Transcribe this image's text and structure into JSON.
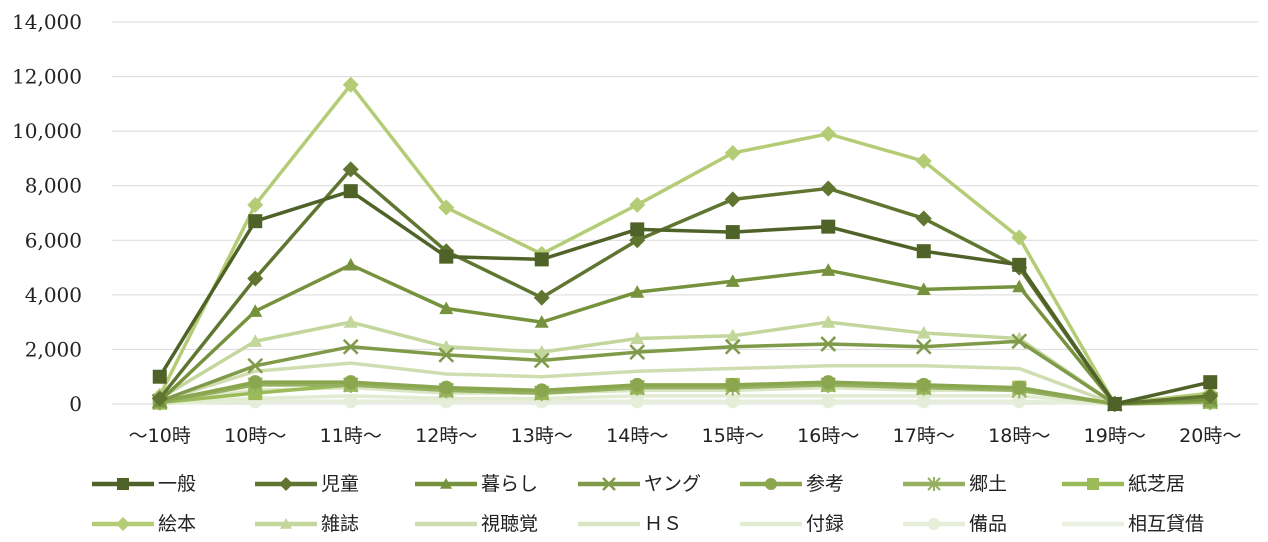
{
  "chart_data": {
    "type": "line",
    "categories": [
      "～10時",
      "10時～",
      "11時～",
      "12時～",
      "13時～",
      "14時～",
      "15時～",
      "16時～",
      "17時～",
      "18時～",
      "19時～",
      "20時～"
    ],
    "y_ticks": [
      "0",
      "2,000",
      "4,000",
      "6,000",
      "8,000",
      "10,000",
      "12,000",
      "14,000"
    ],
    "ylim": [
      0,
      14000
    ],
    "grid": true,
    "legend_position": "bottom",
    "series": [
      {
        "name": "一般",
        "color": "#4f6228",
        "marker": "square",
        "values": [
          1000,
          6700,
          7800,
          5400,
          5300,
          6400,
          6300,
          6500,
          5600,
          5100,
          0,
          800
        ]
      },
      {
        "name": "児童",
        "color": "#5f7530",
        "marker": "diamond",
        "values": [
          200,
          4600,
          8600,
          5600,
          3900,
          6000,
          7500,
          7900,
          6800,
          5000,
          0,
          300
        ]
      },
      {
        "name": "暮らし",
        "color": "#76923c",
        "marker": "triangle",
        "values": [
          100,
          3400,
          5100,
          3500,
          3000,
          4100,
          4500,
          4900,
          4200,
          4300,
          0,
          200
        ]
      },
      {
        "name": "ヤング",
        "color": "#7f9a48",
        "marker": "x",
        "values": [
          100,
          1400,
          2100,
          1800,
          1600,
          1900,
          2100,
          2200,
          2100,
          2300,
          0,
          150
        ]
      },
      {
        "name": "参考",
        "color": "#8aa64f",
        "marker": "circle",
        "values": [
          80,
          800,
          800,
          600,
          500,
          700,
          700,
          800,
          700,
          600,
          0,
          100
        ]
      },
      {
        "name": "郷土",
        "color": "#94b060",
        "marker": "star",
        "values": [
          60,
          700,
          700,
          500,
          400,
          600,
          600,
          700,
          600,
          500,
          0,
          80
        ]
      },
      {
        "name": "紙芝居",
        "color": "#9bbb59",
        "marker": "square",
        "values": [
          50,
          400,
          700,
          500,
          400,
          600,
          700,
          700,
          600,
          600,
          0,
          80
        ]
      },
      {
        "name": "絵本",
        "color": "#b5cc76",
        "marker": "diamond",
        "values": [
          300,
          7300,
          11700,
          7200,
          5500,
          7300,
          9200,
          9900,
          8900,
          6100,
          0,
          400
        ]
      },
      {
        "name": "雑誌",
        "color": "#c3d69b",
        "marker": "triangle",
        "values": [
          200,
          2300,
          3000,
          2100,
          1900,
          2400,
          2500,
          3000,
          2600,
          2400,
          0,
          200
        ]
      },
      {
        "name": "視聴覚",
        "color": "#cfddb0",
        "marker": "none",
        "values": [
          100,
          1200,
          1500,
          1100,
          1000,
          1200,
          1300,
          1400,
          1400,
          1300,
          0,
          100
        ]
      },
      {
        "name": "ＨＳ",
        "color": "#dbe5c4",
        "marker": "none",
        "values": [
          50,
          500,
          600,
          400,
          400,
          500,
          500,
          600,
          500,
          500,
          0,
          50
        ]
      },
      {
        "name": "付録",
        "color": "#e3ebd3",
        "marker": "none",
        "values": [
          30,
          200,
          300,
          200,
          200,
          300,
          300,
          300,
          300,
          300,
          0,
          30
        ]
      },
      {
        "name": "備品",
        "color": "#e6edd8",
        "marker": "circle",
        "values": [
          20,
          100,
          100,
          100,
          100,
          100,
          100,
          100,
          100,
          100,
          0,
          20
        ]
      },
      {
        "name": "相互貸借",
        "color": "#ebf1e0",
        "marker": "none",
        "values": [
          20,
          100,
          100,
          100,
          100,
          100,
          100,
          100,
          100,
          100,
          0,
          20
        ]
      }
    ]
  }
}
